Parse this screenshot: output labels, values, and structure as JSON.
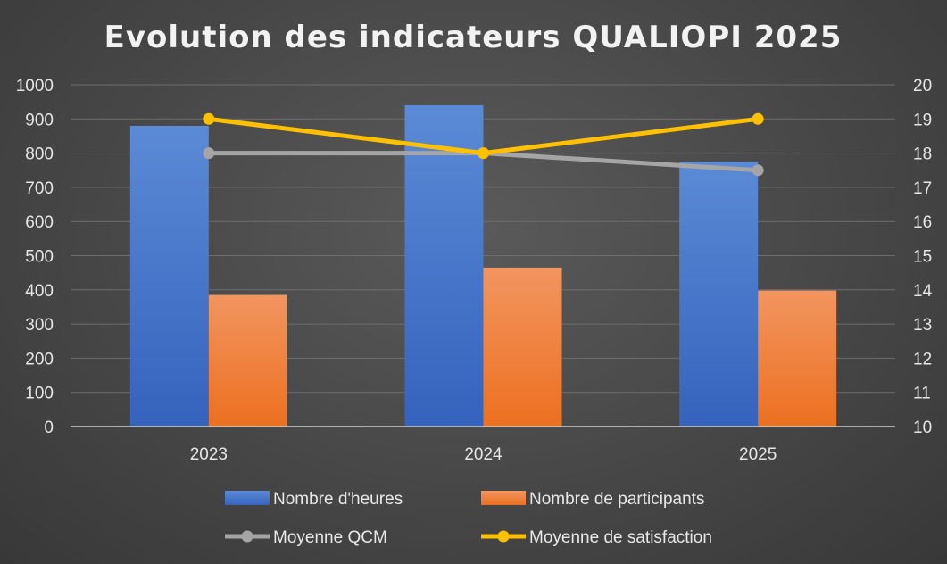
{
  "chart_data": {
    "type": "bar-line-combo",
    "title": "Evolution des indicateurs QUALIOPI 2025",
    "categories": [
      "2023",
      "2024",
      "2025"
    ],
    "bar_series": [
      {
        "name": "Nombre d'heures",
        "values": [
          880,
          940,
          775
        ],
        "color": "#4472C4"
      },
      {
        "name": "Nombre de participants",
        "values": [
          385,
          465,
          398
        ],
        "color": "#ED7D31"
      }
    ],
    "line_series": [
      {
        "name": "Moyenne QCM",
        "values": [
          18,
          18,
          17.5
        ],
        "color": "#A5A5A5",
        "axis": "right"
      },
      {
        "name": "Moyenne de satisfaction",
        "values": [
          19,
          18,
          19
        ],
        "color": "#FFC000",
        "axis": "right"
      }
    ],
    "y_left": {
      "min": 0,
      "max": 1000,
      "step": 100,
      "ticks": [
        "0",
        "100",
        "200",
        "300",
        "400",
        "500",
        "600",
        "700",
        "800",
        "900",
        "1000"
      ]
    },
    "y_right": {
      "min": 10,
      "max": 20,
      "step": 1,
      "ticks": [
        "10",
        "11",
        "12",
        "13",
        "14",
        "15",
        "16",
        "17",
        "18",
        "19",
        "20"
      ]
    },
    "gridlines": true,
    "legend_position": "bottom"
  }
}
